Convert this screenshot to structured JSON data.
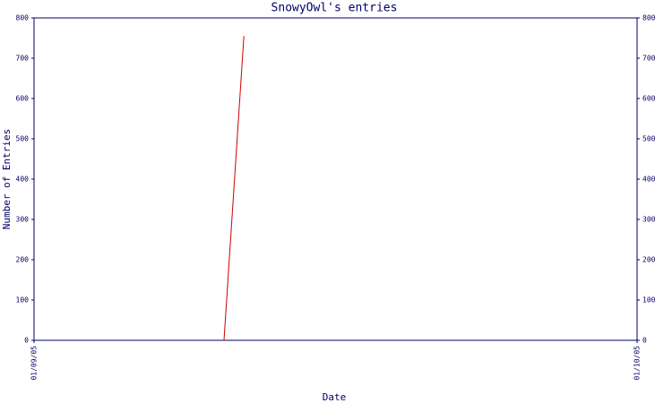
{
  "chart_data": {
    "type": "line",
    "title": "SnowyOwl's entries",
    "xlabel": "Date",
    "ylabel": "Number of Entries",
    "x": [
      0.315,
      0.348
    ],
    "values": [
      0,
      755
    ],
    "color": "#cc0000",
    "xlim": [
      0,
      1
    ],
    "xticks": [
      {
        "value": 0,
        "label": "01/09/05"
      },
      {
        "value": 1,
        "label": "01/10/05"
      }
    ],
    "ylim": [
      0,
      800
    ],
    "yticks": [
      0,
      100,
      200,
      300,
      400,
      500,
      600,
      700,
      800
    ],
    "axis_color": "#000066"
  }
}
